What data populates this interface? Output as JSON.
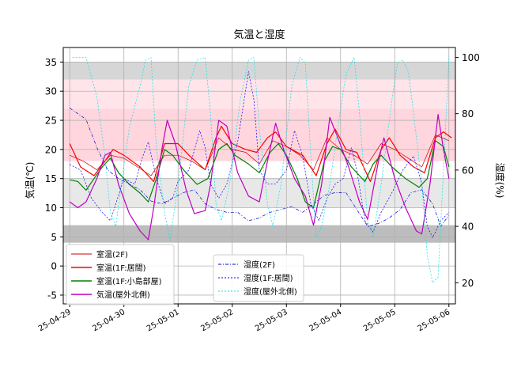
{
  "chart_data": {
    "type": "line",
    "title": "気温と湿度",
    "ylabel_left": "気温(℃)",
    "ylabel_right": "湿度(%)",
    "ylim_left": [
      -6.5,
      37.5
    ],
    "ylim_right": [
      12.5,
      103.5
    ],
    "xlim_days": [
      -0.12,
      7.12
    ],
    "grid": true,
    "x_ticks": [
      "25-04-29",
      "25-04-30",
      "25-05-01",
      "25-05-02",
      "25-05-03",
      "25-05-04",
      "25-05-05",
      "25-05-06"
    ],
    "y_ticks_left": [
      -5,
      0,
      5,
      10,
      15,
      20,
      25,
      30,
      35
    ],
    "y_ticks_right": [
      20,
      40,
      60,
      80,
      100
    ],
    "bands_left": [
      {
        "from": 4,
        "to": 7,
        "color": "#bdbdbd"
      },
      {
        "from": 10,
        "to": 15,
        "color": "#e8e8e8"
      },
      {
        "from": 18,
        "to": 27,
        "color": "#ffd6de"
      },
      {
        "from": 27,
        "to": 32,
        "color": "#ffe4ea"
      },
      {
        "from": 32,
        "to": 35,
        "color": "#d6d6d6"
      }
    ],
    "series": [
      {
        "name": "室温(2F)",
        "axis": "left",
        "color": "#cc0000",
        "width": 0.7,
        "dash": "",
        "points": [
          [
            0,
            19
          ],
          [
            0.25,
            18
          ],
          [
            0.5,
            16.5
          ],
          [
            0.75,
            19
          ],
          [
            1.0,
            18.5
          ],
          [
            1.25,
            17
          ],
          [
            1.5,
            15.5
          ],
          [
            1.75,
            19
          ],
          [
            2.0,
            19
          ],
          [
            2.25,
            18
          ],
          [
            2.5,
            16.5
          ],
          [
            2.75,
            22
          ],
          [
            3.0,
            20
          ],
          [
            3.25,
            19.5
          ],
          [
            3.5,
            17.5
          ],
          [
            3.75,
            21.5
          ],
          [
            4.0,
            20.5
          ],
          [
            4.25,
            19
          ],
          [
            4.5,
            16.5
          ],
          [
            4.75,
            22
          ],
          [
            5.0,
            20
          ],
          [
            5.25,
            19
          ],
          [
            5.5,
            17.5
          ],
          [
            5.75,
            21
          ],
          [
            6.0,
            20
          ],
          [
            6.25,
            18.5
          ],
          [
            6.5,
            17
          ],
          [
            6.75,
            22.5
          ],
          [
            7.0,
            21.5
          ]
        ]
      },
      {
        "name": "室温(1F:居間)",
        "axis": "left",
        "color": "#ff0000",
        "width": 1.2,
        "dash": "",
        "points": [
          [
            0,
            21
          ],
          [
            0.2,
            17
          ],
          [
            0.45,
            15.5
          ],
          [
            0.65,
            18
          ],
          [
            0.8,
            20
          ],
          [
            1.0,
            19
          ],
          [
            1.3,
            17
          ],
          [
            1.55,
            14.5
          ],
          [
            1.75,
            21
          ],
          [
            2.0,
            21
          ],
          [
            2.2,
            19
          ],
          [
            2.5,
            16.5
          ],
          [
            2.7,
            22
          ],
          [
            2.8,
            24
          ],
          [
            3.0,
            21
          ],
          [
            3.25,
            20
          ],
          [
            3.45,
            19.5
          ],
          [
            3.65,
            22
          ],
          [
            3.8,
            23
          ],
          [
            4.0,
            20.5
          ],
          [
            4.3,
            19
          ],
          [
            4.55,
            15.5
          ],
          [
            4.75,
            21
          ],
          [
            4.9,
            23.5
          ],
          [
            5.1,
            20
          ],
          [
            5.3,
            19.5
          ],
          [
            5.55,
            14.5
          ],
          [
            5.75,
            20
          ],
          [
            5.9,
            22
          ],
          [
            6.1,
            19
          ],
          [
            6.35,
            17
          ],
          [
            6.55,
            16
          ],
          [
            6.75,
            22
          ],
          [
            6.9,
            23
          ],
          [
            7.05,
            22
          ]
        ]
      },
      {
        "name": "室温(1F:小島部屋)",
        "axis": "left",
        "color": "#008000",
        "width": 1.2,
        "dash": "",
        "points": [
          [
            0,
            14.8
          ],
          [
            0.15,
            14.5
          ],
          [
            0.3,
            13
          ],
          [
            0.45,
            15
          ],
          [
            0.6,
            17
          ],
          [
            0.75,
            18.5
          ],
          [
            0.9,
            16
          ],
          [
            1.1,
            14
          ],
          [
            1.3,
            12.5
          ],
          [
            1.45,
            11
          ],
          [
            1.6,
            15
          ],
          [
            1.75,
            20
          ],
          [
            1.9,
            19
          ],
          [
            2.1,
            16.5
          ],
          [
            2.35,
            14
          ],
          [
            2.55,
            15
          ],
          [
            2.75,
            20
          ],
          [
            2.9,
            21
          ],
          [
            3.05,
            19
          ],
          [
            3.3,
            17.5
          ],
          [
            3.5,
            16
          ],
          [
            3.7,
            19.5
          ],
          [
            3.85,
            21
          ],
          [
            4.0,
            19
          ],
          [
            4.2,
            15
          ],
          [
            4.35,
            11
          ],
          [
            4.5,
            10
          ],
          [
            4.7,
            18
          ],
          [
            4.85,
            20.5
          ],
          [
            5.0,
            20
          ],
          [
            5.2,
            17
          ],
          [
            5.45,
            14.5
          ],
          [
            5.6,
            17.5
          ],
          [
            5.75,
            19
          ],
          [
            5.95,
            17
          ],
          [
            6.2,
            15
          ],
          [
            6.45,
            13.5
          ],
          [
            6.6,
            15
          ],
          [
            6.75,
            21.5
          ],
          [
            6.9,
            20.5
          ],
          [
            7.0,
            17
          ]
        ]
      },
      {
        "name": "気温(屋外北側)",
        "axis": "left",
        "color": "#c000c0",
        "width": 1.2,
        "dash": "",
        "points": [
          [
            0,
            11
          ],
          [
            0.15,
            10
          ],
          [
            0.3,
            11
          ],
          [
            0.5,
            15
          ],
          [
            0.65,
            19
          ],
          [
            0.75,
            19.5
          ],
          [
            0.9,
            14
          ],
          [
            1.1,
            9
          ],
          [
            1.3,
            6
          ],
          [
            1.45,
            4.5
          ],
          [
            1.55,
            10
          ],
          [
            1.7,
            20
          ],
          [
            1.8,
            25
          ],
          [
            1.95,
            21
          ],
          [
            2.15,
            13
          ],
          [
            2.3,
            9
          ],
          [
            2.5,
            9.5
          ],
          [
            2.6,
            14
          ],
          [
            2.75,
            25
          ],
          [
            2.9,
            24
          ],
          [
            3.1,
            16
          ],
          [
            3.3,
            12
          ],
          [
            3.5,
            11
          ],
          [
            3.65,
            18
          ],
          [
            3.8,
            24.5
          ],
          [
            3.95,
            20
          ],
          [
            4.15,
            15
          ],
          [
            4.35,
            12
          ],
          [
            4.5,
            7
          ],
          [
            4.65,
            14
          ],
          [
            4.8,
            25.5
          ],
          [
            4.95,
            22
          ],
          [
            5.15,
            17
          ],
          [
            5.35,
            11
          ],
          [
            5.5,
            8
          ],
          [
            5.7,
            18
          ],
          [
            5.8,
            22
          ],
          [
            6.0,
            15
          ],
          [
            6.2,
            10
          ],
          [
            6.4,
            6
          ],
          [
            6.5,
            5.5
          ],
          [
            6.65,
            14
          ],
          [
            6.8,
            26
          ],
          [
            6.9,
            20
          ],
          [
            7.0,
            15
          ]
        ]
      },
      {
        "name": "湿度(2F)",
        "axis": "right",
        "color": "#0000cc",
        "width": 0.7,
        "dash": "4,2,1,2",
        "points": [
          [
            0,
            82
          ],
          [
            0.3,
            78
          ],
          [
            0.5,
            68
          ],
          [
            0.7,
            60
          ],
          [
            0.9,
            57
          ],
          [
            1.1,
            55
          ],
          [
            1.3,
            53
          ],
          [
            1.5,
            49
          ],
          [
            1.7,
            48
          ],
          [
            1.9,
            50
          ],
          [
            2.1,
            52
          ],
          [
            2.3,
            53
          ],
          [
            2.5,
            48
          ],
          [
            2.7,
            46
          ],
          [
            2.9,
            45
          ],
          [
            3.1,
            45
          ],
          [
            3.3,
            42
          ],
          [
            3.5,
            43
          ],
          [
            3.7,
            45
          ],
          [
            3.9,
            46
          ],
          [
            4.1,
            47
          ],
          [
            4.3,
            45
          ],
          [
            4.5,
            48
          ],
          [
            4.7,
            51
          ],
          [
            4.9,
            52
          ],
          [
            5.1,
            52
          ],
          [
            5.3,
            46
          ],
          [
            5.5,
            40
          ],
          [
            5.7,
            41
          ],
          [
            5.9,
            43
          ],
          [
            6.1,
            46
          ],
          [
            6.3,
            52
          ],
          [
            6.5,
            53
          ],
          [
            6.7,
            48
          ],
          [
            6.85,
            40
          ],
          [
            7.0,
            44
          ]
        ]
      },
      {
        "name": "湿度(1F:居間)",
        "axis": "right",
        "color": "#0000ff",
        "width": 0.7,
        "dash": "2,2",
        "points": [
          [
            0,
            62
          ],
          [
            0.2,
            60
          ],
          [
            0.4,
            50
          ],
          [
            0.6,
            45
          ],
          [
            0.75,
            42
          ],
          [
            0.85,
            48
          ],
          [
            1.0,
            57
          ],
          [
            1.2,
            55
          ],
          [
            1.35,
            65
          ],
          [
            1.45,
            70
          ],
          [
            1.6,
            57
          ],
          [
            1.75,
            48
          ],
          [
            1.9,
            50
          ],
          [
            2.0,
            56
          ],
          [
            2.2,
            60
          ],
          [
            2.4,
            74
          ],
          [
            2.5,
            68
          ],
          [
            2.6,
            55
          ],
          [
            2.75,
            50
          ],
          [
            2.9,
            55
          ],
          [
            3.1,
            70
          ],
          [
            3.3,
            95
          ],
          [
            3.4,
            85
          ],
          [
            3.5,
            60
          ],
          [
            3.65,
            55
          ],
          [
            3.8,
            55
          ],
          [
            4.0,
            60
          ],
          [
            4.15,
            74
          ],
          [
            4.3,
            65
          ],
          [
            4.45,
            48
          ],
          [
            4.6,
            42
          ],
          [
            4.75,
            50
          ],
          [
            4.9,
            55
          ],
          [
            5.05,
            57
          ],
          [
            5.2,
            68
          ],
          [
            5.3,
            60
          ],
          [
            5.45,
            42
          ],
          [
            5.6,
            38
          ],
          [
            5.75,
            45
          ],
          [
            5.95,
            52
          ],
          [
            6.15,
            60
          ],
          [
            6.35,
            65
          ],
          [
            6.5,
            55
          ],
          [
            6.6,
            40
          ],
          [
            6.7,
            36
          ],
          [
            6.85,
            42
          ],
          [
            7.0,
            45
          ]
        ]
      },
      {
        "name": "湿度(屋外北側)",
        "axis": "right",
        "color": "#00e5ee",
        "width": 0.7,
        "dash": "2,2",
        "points": [
          [
            0.05,
            100
          ],
          [
            0.3,
            100
          ],
          [
            0.5,
            86
          ],
          [
            0.65,
            65
          ],
          [
            0.75,
            45
          ],
          [
            0.85,
            40
          ],
          [
            0.95,
            55
          ],
          [
            1.1,
            75
          ],
          [
            1.3,
            90
          ],
          [
            1.4,
            99
          ],
          [
            1.5,
            100
          ],
          [
            1.6,
            68
          ],
          [
            1.75,
            45
          ],
          [
            1.85,
            35
          ],
          [
            2.0,
            55
          ],
          [
            2.2,
            90
          ],
          [
            2.35,
            99
          ],
          [
            2.5,
            100
          ],
          [
            2.6,
            80
          ],
          [
            2.7,
            48
          ],
          [
            2.8,
            42
          ],
          [
            2.95,
            55
          ],
          [
            3.15,
            85
          ],
          [
            3.3,
            99
          ],
          [
            3.4,
            100
          ],
          [
            3.5,
            75
          ],
          [
            3.65,
            48
          ],
          [
            3.75,
            40
          ],
          [
            3.9,
            55
          ],
          [
            4.1,
            90
          ],
          [
            4.25,
            100
          ],
          [
            4.35,
            98
          ],
          [
            4.45,
            65
          ],
          [
            4.55,
            36
          ],
          [
            4.65,
            40
          ],
          [
            4.8,
            55
          ],
          [
            4.95,
            75
          ],
          [
            5.1,
            94
          ],
          [
            5.25,
            100
          ],
          [
            5.35,
            80
          ],
          [
            5.5,
            42
          ],
          [
            5.6,
            36
          ],
          [
            5.75,
            55
          ],
          [
            5.95,
            85
          ],
          [
            6.05,
            98
          ],
          [
            6.15,
            99
          ],
          [
            6.25,
            95
          ],
          [
            6.35,
            80
          ],
          [
            6.5,
            55
          ],
          [
            6.6,
            30
          ],
          [
            6.7,
            20
          ],
          [
            6.8,
            22
          ],
          [
            6.9,
            60
          ],
          [
            7.0,
            100
          ]
        ]
      }
    ]
  }
}
